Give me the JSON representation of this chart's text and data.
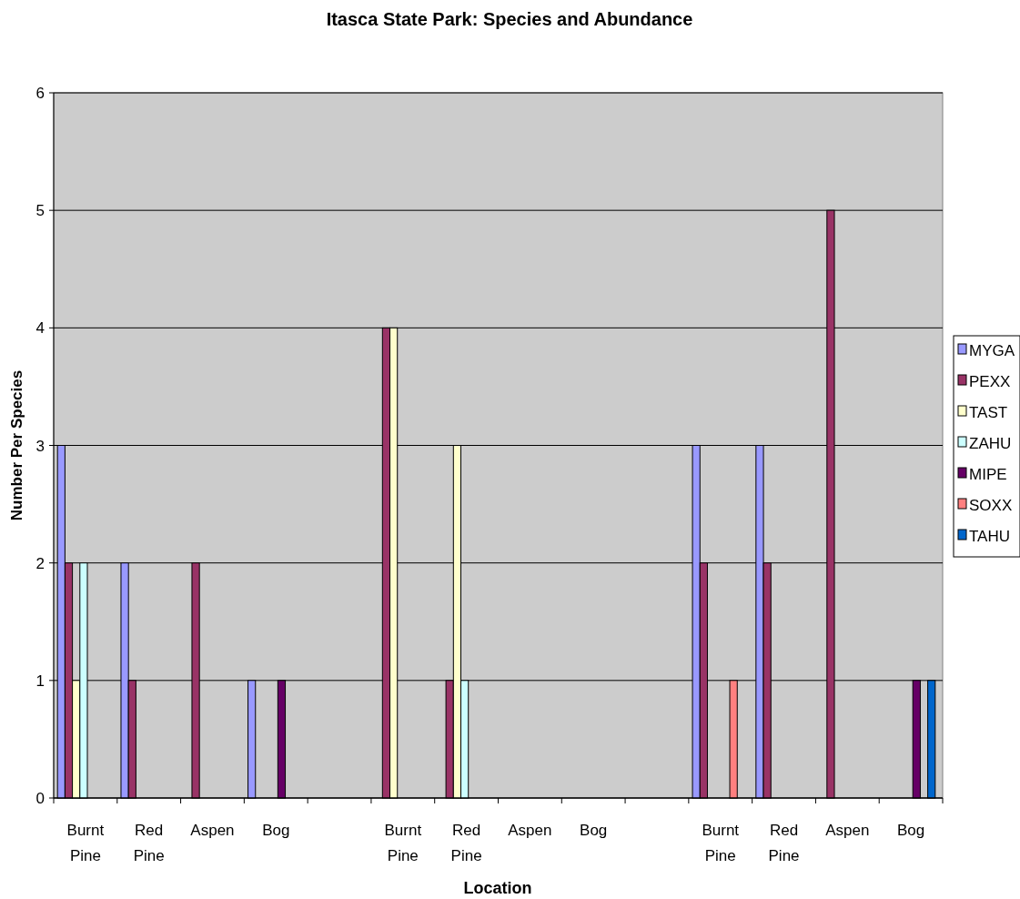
{
  "chart_data": {
    "type": "bar",
    "title": "Itasca State Park: Species and Abundance",
    "xlabel": "Location",
    "ylabel": "Number Per Species",
    "categories": [
      "Burnt Pine",
      "Red Pine",
      "Aspen",
      "Bog",
      null,
      "Burnt Pine",
      "Red Pine",
      "Aspen",
      "Bog",
      null,
      "Burnt Pine",
      "Red Pine",
      "Aspen",
      "Bog"
    ],
    "series": [
      {
        "name": "MYGA",
        "color": "#9999ff",
        "values": [
          3,
          2,
          null,
          1,
          null,
          null,
          null,
          null,
          null,
          null,
          3,
          3,
          null,
          null
        ]
      },
      {
        "name": "PEXX",
        "color": "#993366",
        "values": [
          2,
          1,
          2,
          null,
          null,
          4,
          1,
          null,
          null,
          null,
          2,
          2,
          5,
          null
        ]
      },
      {
        "name": "TAST",
        "color": "#ffffcc",
        "values": [
          1,
          null,
          null,
          null,
          null,
          4,
          3,
          null,
          null,
          null,
          null,
          null,
          null,
          null
        ]
      },
      {
        "name": "ZAHU",
        "color": "#ccffff",
        "values": [
          2,
          null,
          null,
          null,
          null,
          null,
          1,
          null,
          null,
          null,
          null,
          null,
          null,
          null
        ]
      },
      {
        "name": "MIPE",
        "color": "#660066",
        "values": [
          null,
          null,
          null,
          1,
          null,
          null,
          null,
          null,
          null,
          null,
          null,
          null,
          null,
          1
        ]
      },
      {
        "name": "SOXX",
        "color": "#ff8080",
        "values": [
          null,
          null,
          null,
          null,
          null,
          null,
          null,
          null,
          null,
          null,
          1,
          null,
          null,
          null
        ]
      },
      {
        "name": "TAHU",
        "color": "#0066cc",
        "values": [
          null,
          null,
          null,
          null,
          null,
          null,
          null,
          null,
          null,
          null,
          null,
          null,
          null,
          1
        ]
      }
    ],
    "ylim": [
      0,
      6
    ],
    "yticks": [
      0,
      1,
      2,
      3,
      4,
      5,
      6
    ],
    "grid": "y",
    "legend": "right"
  }
}
